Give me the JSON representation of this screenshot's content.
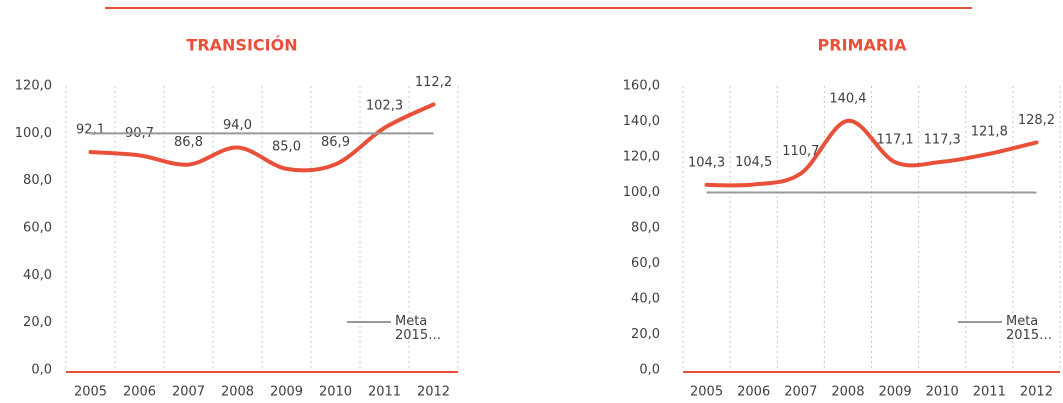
{
  "chart_data": [
    {
      "type": "line",
      "title": "TRANSICIÓN",
      "categories": [
        "2005",
        "2006",
        "2007",
        "2008",
        "2009",
        "2010",
        "2011",
        "2012"
      ],
      "series": [
        {
          "color": "#e8503a",
          "values": [
            92.1,
            90.7,
            86.8,
            94.0,
            85.0,
            86.9,
            102.3,
            112.2
          ],
          "value_labels": [
            "92,1",
            "90,7",
            "86,8",
            "94,0",
            "85,0",
            "86,9",
            "102,3",
            "112,2"
          ]
        },
        {
          "name": "Meta 2015…",
          "color": "#999999",
          "values": [
            100,
            100,
            100,
            100,
            100,
            100,
            100,
            100
          ]
        }
      ],
      "ylim": [
        0,
        120
      ],
      "yticks": [
        {
          "value": 0,
          "label": "0,0"
        },
        {
          "value": 20,
          "label": "20,0"
        },
        {
          "value": 40,
          "label": "40,0"
        },
        {
          "value": 60,
          "label": "60,0"
        },
        {
          "value": 80,
          "label": "80,0"
        },
        {
          "value": 100,
          "label": "100,0"
        },
        {
          "value": 120,
          "label": "120,0"
        }
      ]
    },
    {
      "type": "line",
      "title": "PRIMARIA",
      "categories": [
        "2005",
        "2006",
        "2007",
        "2008",
        "2009",
        "2010",
        "2011",
        "2012"
      ],
      "series": [
        {
          "color": "#e8503a",
          "values": [
            104.3,
            104.5,
            110.7,
            140.4,
            117.1,
            117.3,
            121.8,
            128.2
          ],
          "value_labels": [
            "104,3",
            "104,5",
            "110,7",
            "140,4",
            "117,1",
            "117,3",
            "121,8",
            "128,2"
          ]
        },
        {
          "name": "Meta 2015…",
          "color": "#999999",
          "values": [
            100,
            100,
            100,
            100,
            100,
            100,
            100,
            100
          ]
        }
      ],
      "ylim": [
        0,
        160
      ],
      "yticks": [
        {
          "value": 0,
          "label": "0,0"
        },
        {
          "value": 20,
          "label": "20,0"
        },
        {
          "value": 40,
          "label": "40,0"
        },
        {
          "value": 60,
          "label": "60,0"
        },
        {
          "value": 80,
          "label": "80,0"
        },
        {
          "value": 100,
          "label": "100,0"
        },
        {
          "value": 120,
          "label": "120,0"
        },
        {
          "value": 140,
          "label": "140,0"
        },
        {
          "value": 160,
          "label": "160,0"
        }
      ]
    }
  ]
}
